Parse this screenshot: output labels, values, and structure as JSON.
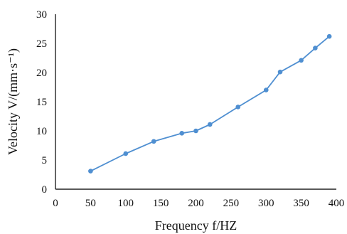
{
  "chart_data": {
    "type": "line",
    "title": "",
    "xlabel": "Frequency f/HZ",
    "ylabel": "Velocity V/(mm·s⁻¹)",
    "xlim": [
      0,
      400
    ],
    "ylim": [
      0,
      30
    ],
    "xticks": [
      "0",
      "50",
      "100",
      "150",
      "200",
      "250",
      "300",
      "350",
      "400"
    ],
    "yticks": [
      "0",
      "5",
      "10",
      "15",
      "20",
      "25",
      "30"
    ],
    "grid": false,
    "legend": "none",
    "series": [
      {
        "color": "#4f8fd1",
        "marker": "circle",
        "x": [
          50,
          100,
          140,
          180,
          200,
          220,
          260,
          300,
          320,
          350,
          370,
          390
        ],
        "y": [
          3.1,
          6.1,
          8.2,
          9.6,
          10.0,
          11.1,
          14.1,
          17.0,
          20.1,
          22.1,
          24.2,
          26.2
        ]
      }
    ]
  }
}
